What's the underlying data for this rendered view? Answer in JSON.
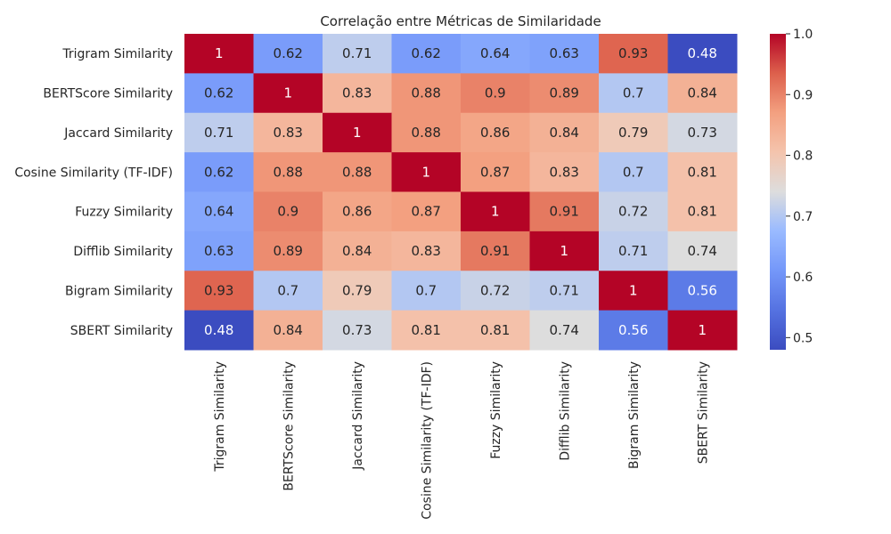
{
  "chart_data": {
    "type": "heatmap",
    "title": "Correlação entre Métricas de Similaridade",
    "rows": [
      "Trigram Similarity",
      "BERTScore Similarity",
      "Jaccard Similarity",
      "Cosine Similarity (TF-IDF)",
      "Fuzzy Similarity",
      "Difflib Similarity",
      "Bigram Similarity",
      "SBERT Similarity"
    ],
    "columns": [
      "Trigram Similarity",
      "BERTScore Similarity",
      "Jaccard Similarity",
      "Cosine Similarity (TF-IDF)",
      "Fuzzy Similarity",
      "Difflib Similarity",
      "Bigram Similarity",
      "SBERT Similarity"
    ],
    "values": [
      [
        1,
        0.62,
        0.71,
        0.62,
        0.64,
        0.63,
        0.93,
        0.48
      ],
      [
        0.62,
        1,
        0.83,
        0.88,
        0.9,
        0.89,
        0.7,
        0.84
      ],
      [
        0.71,
        0.83,
        1,
        0.88,
        0.86,
        0.84,
        0.79,
        0.73
      ],
      [
        0.62,
        0.88,
        0.88,
        1,
        0.87,
        0.83,
        0.7,
        0.81
      ],
      [
        0.64,
        0.9,
        0.86,
        0.87,
        1,
        0.91,
        0.72,
        0.81
      ],
      [
        0.63,
        0.89,
        0.84,
        0.83,
        0.91,
        1,
        0.71,
        0.74
      ],
      [
        0.93,
        0.7,
        0.79,
        0.7,
        0.72,
        0.71,
        1,
        0.56
      ],
      [
        0.48,
        0.84,
        0.73,
        0.81,
        0.81,
        0.74,
        0.56,
        1
      ]
    ],
    "annotations": [
      [
        "1",
        "0.62",
        "0.71",
        "0.62",
        "0.64",
        "0.63",
        "0.93",
        "0.48"
      ],
      [
        "0.62",
        "1",
        "0.83",
        "0.88",
        "0.9",
        "0.89",
        "0.7",
        "0.84"
      ],
      [
        "0.71",
        "0.83",
        "1",
        "0.88",
        "0.86",
        "0.84",
        "0.79",
        "0.73"
      ],
      [
        "0.62",
        "0.88",
        "0.88",
        "1",
        "0.87",
        "0.83",
        "0.7",
        "0.81"
      ],
      [
        "0.64",
        "0.9",
        "0.86",
        "0.87",
        "1",
        "0.91",
        "0.72",
        "0.81"
      ],
      [
        "0.63",
        "0.89",
        "0.84",
        "0.83",
        "0.91",
        "1",
        "0.71",
        "0.74"
      ],
      [
        "0.93",
        "0.7",
        "0.79",
        "0.7",
        "0.72",
        "0.71",
        "1",
        "0.56"
      ],
      [
        "0.48",
        "0.84",
        "0.73",
        "0.81",
        "0.81",
        "0.74",
        "0.56",
        "1"
      ]
    ],
    "colormap": "coolwarm",
    "vmin": 0.48,
    "vmax": 1.0,
    "colorbar": {
      "ticks": [
        0.5,
        0.6,
        0.7,
        0.8,
        0.9,
        1.0
      ],
      "tick_labels": [
        "0.5",
        "0.6",
        "0.7",
        "0.8",
        "0.9",
        "1.0"
      ]
    },
    "colors": {
      "low": "#3b4cc0",
      "mid": "#dddddd",
      "high": "#b40426",
      "text_dark": "#262626",
      "text_light": "#ffffff"
    }
  }
}
